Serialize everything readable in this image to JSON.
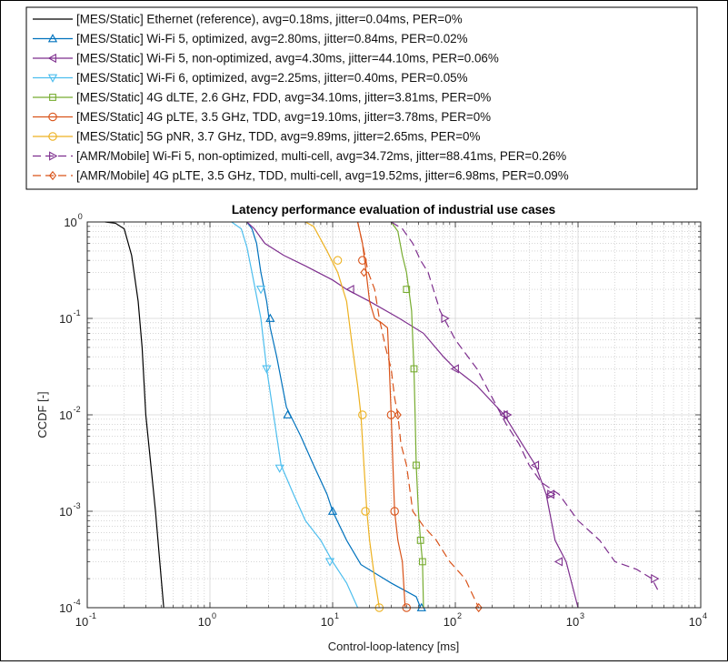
{
  "chart_data": {
    "type": "line",
    "title": "Latency performance evaluation of industrial use cases",
    "xlabel": "Control-loop-latency [ms]",
    "ylabel": "CCDF [-]",
    "xscale": "log",
    "yscale": "log",
    "xlim": [
      0.1,
      10000
    ],
    "ylim": [
      0.0001,
      1
    ],
    "grid": true,
    "legend_position": "above plot",
    "x_ticks": [
      {
        "base": "10",
        "exp": "-1",
        "value": 0.1
      },
      {
        "base": "10",
        "exp": "0",
        "value": 1
      },
      {
        "base": "10",
        "exp": "1",
        "value": 10
      },
      {
        "base": "10",
        "exp": "2",
        "value": 100
      },
      {
        "base": "10",
        "exp": "3",
        "value": 1000
      },
      {
        "base": "10",
        "exp": "4",
        "value": 10000
      }
    ],
    "y_ticks": [
      {
        "base": "10",
        "exp": "0",
        "value": 1
      },
      {
        "base": "10",
        "exp": "-1",
        "value": 0.1
      },
      {
        "base": "10",
        "exp": "-2",
        "value": 0.01
      },
      {
        "base": "10",
        "exp": "-3",
        "value": 0.001
      },
      {
        "base": "10",
        "exp": "-4",
        "value": 0.0001
      }
    ],
    "series": [
      {
        "name": "[MES/Static] Ethernet (reference), avg=0.18ms, jitter=0.04ms, PER=0%",
        "color": "#000000",
        "dash": "solid",
        "marker": "none",
        "points": [
          [
            0.14,
            1
          ],
          [
            0.17,
            0.97
          ],
          [
            0.2,
            0.85
          ],
          [
            0.23,
            0.45
          ],
          [
            0.26,
            0.15
          ],
          [
            0.28,
            0.05
          ],
          [
            0.3,
            0.01
          ],
          [
            0.33,
            0.003
          ],
          [
            0.36,
            0.001
          ],
          [
            0.39,
            0.0003
          ],
          [
            0.42,
            0.0001
          ]
        ],
        "markers": []
      },
      {
        "name": "[MES/Static] Wi-Fi 5, optimized, avg=2.80ms, jitter=0.84ms, PER=0.02%",
        "color": "#0072bd",
        "dash": "solid",
        "marker": "triangle-up",
        "points": [
          [
            2.0,
            1
          ],
          [
            2.2,
            0.85
          ],
          [
            2.4,
            0.6
          ],
          [
            2.6,
            0.3
          ],
          [
            2.9,
            0.15
          ],
          [
            3.1,
            0.08
          ],
          [
            3.5,
            0.04
          ],
          [
            4.2,
            0.012
          ],
          [
            5.5,
            0.006
          ],
          [
            7,
            0.003
          ],
          [
            9,
            0.0015
          ],
          [
            10,
            0.001
          ],
          [
            13,
            0.0005
          ],
          [
            17,
            0.00028
          ],
          [
            30,
            0.00018
          ],
          [
            48,
            0.00013
          ],
          [
            52,
            0.0001
          ]
        ],
        "markers": [
          [
            3.1,
            0.1
          ],
          [
            4.3,
            0.01
          ],
          [
            10,
            0.001
          ],
          [
            53,
            0.0001
          ]
        ]
      },
      {
        "name": "[MES/Static] Wi-Fi 5, non-optimized, avg=4.30ms, jitter=44.10ms, PER=0.06%",
        "color": "#7e2f8e",
        "dash": "solid",
        "marker": "triangle-left",
        "points": [
          [
            2.0,
            1
          ],
          [
            2.3,
            0.85
          ],
          [
            2.8,
            0.6
          ],
          [
            4,
            0.45
          ],
          [
            6,
            0.35
          ],
          [
            10,
            0.25
          ],
          [
            13,
            0.2
          ],
          [
            20,
            0.15
          ],
          [
            35,
            0.1
          ],
          [
            55,
            0.07
          ],
          [
            80,
            0.04
          ],
          [
            100,
            0.03
          ],
          [
            150,
            0.02
          ],
          [
            250,
            0.01
          ],
          [
            350,
            0.005
          ],
          [
            450,
            0.003
          ],
          [
            550,
            0.0015
          ],
          [
            650,
            0.0005
          ],
          [
            800,
            0.0003
          ],
          [
            1000,
            0.0001
          ]
        ],
        "markers": [
          [
            14,
            0.2
          ],
          [
            100,
            0.03
          ],
          [
            250,
            0.01
          ],
          [
            450,
            0.003
          ],
          [
            600,
            0.0015
          ],
          [
            700,
            0.0003
          ]
        ]
      },
      {
        "name": "[MES/Static] Wi-Fi 6, optimized, avg=2.25ms, jitter=0.40ms, PER=0.05%",
        "color": "#4dbeee",
        "dash": "solid",
        "marker": "triangle-down",
        "points": [
          [
            1.5,
            1
          ],
          [
            1.8,
            0.85
          ],
          [
            2.0,
            0.55
          ],
          [
            2.2,
            0.3
          ],
          [
            2.6,
            0.1
          ],
          [
            2.9,
            0.03
          ],
          [
            3.3,
            0.01
          ],
          [
            3.8,
            0.003
          ],
          [
            4.8,
            0.0015
          ],
          [
            6,
            0.0008
          ],
          [
            8,
            0.0005
          ],
          [
            10,
            0.0003
          ],
          [
            13,
            0.00018
          ],
          [
            16,
            0.0001
          ]
        ],
        "markers": [
          [
            2.6,
            0.2
          ],
          [
            2.9,
            0.03
          ],
          [
            3.7,
            0.0028
          ],
          [
            9.5,
            0.0003
          ]
        ]
      },
      {
        "name": "[MES/Static] 4G dLTE, 2.6 GHz, FDD, avg=34.10ms, jitter=3.81ms, PER=0%",
        "color": "#77ac30",
        "dash": "solid",
        "marker": "square",
        "points": [
          [
            30,
            1
          ],
          [
            34,
            0.8
          ],
          [
            37,
            0.45
          ],
          [
            40,
            0.3
          ],
          [
            44,
            0.12
          ],
          [
            46,
            0.03
          ],
          [
            47,
            0.01
          ],
          [
            48,
            0.003
          ],
          [
            50,
            0.001
          ],
          [
            52,
            0.0005
          ],
          [
            54,
            0.0003
          ],
          [
            55,
            0.0001
          ]
        ],
        "markers": [
          [
            40,
            0.2
          ],
          [
            46,
            0.03
          ],
          [
            48,
            0.003
          ],
          [
            52,
            0.0005
          ],
          [
            54,
            0.0003
          ]
        ]
      },
      {
        "name": "[MES/Static] 4G pLTE, 3.5 GHz, TDD, avg=19.10ms, jitter=3.78ms, PER=0%",
        "color": "#d95319",
        "dash": "solid",
        "marker": "circle",
        "points": [
          [
            16,
            1
          ],
          [
            17.5,
            0.6
          ],
          [
            18.5,
            0.35
          ],
          [
            20,
            0.15
          ],
          [
            22,
            0.1
          ],
          [
            25,
            0.09
          ],
          [
            28,
            0.08
          ],
          [
            29,
            0.03
          ],
          [
            30,
            0.01
          ],
          [
            31,
            0.003
          ],
          [
            32,
            0.001
          ],
          [
            34,
            0.0005
          ],
          [
            37,
            0.0003
          ],
          [
            39,
            0.0001
          ]
        ],
        "markers": [
          [
            17.5,
            0.4
          ],
          [
            30,
            0.01
          ],
          [
            32,
            0.001
          ],
          [
            40,
            0.0001
          ]
        ]
      },
      {
        "name": "[MES/Static] 5G pNR, 3.7 GHz, TDD, avg=9.89ms, jitter=2.65ms, PER=0%",
        "color": "#edb120",
        "dash": "solid",
        "marker": "circle",
        "points": [
          [
            6,
            1
          ],
          [
            7,
            0.9
          ],
          [
            9,
            0.5
          ],
          [
            11,
            0.3
          ],
          [
            13,
            0.15
          ],
          [
            14.5,
            0.05
          ],
          [
            16,
            0.02
          ],
          [
            17,
            0.01
          ],
          [
            18,
            0.003
          ],
          [
            19,
            0.001
          ],
          [
            20,
            0.0005
          ],
          [
            22,
            0.0002
          ],
          [
            24,
            0.0001
          ]
        ],
        "markers": [
          [
            11,
            0.4
          ],
          [
            17.5,
            0.01
          ],
          [
            18.5,
            0.001
          ],
          [
            24,
            0.0001
          ]
        ]
      },
      {
        "name": "[AMR/Mobile] Wi-Fi 5, non-optimized, multi-cell, avg=34.72ms, jitter=88.41ms, PER=0.26%",
        "color": "#7e2f8e",
        "dash": "dash",
        "marker": "triangle-right",
        "points": [
          [
            30,
            1
          ],
          [
            37,
            0.85
          ],
          [
            45,
            0.6
          ],
          [
            52,
            0.4
          ],
          [
            60,
            0.3
          ],
          [
            75,
            0.12
          ],
          [
            100,
            0.06
          ],
          [
            150,
            0.03
          ],
          [
            200,
            0.015
          ],
          [
            260,
            0.008
          ],
          [
            330,
            0.005
          ],
          [
            400,
            0.003
          ],
          [
            500,
            0.002
          ],
          [
            700,
            0.0015
          ],
          [
            1000,
            0.0008
          ],
          [
            1500,
            0.0005
          ],
          [
            2000,
            0.0003
          ],
          [
            3000,
            0.00025
          ],
          [
            4000,
            0.0002
          ],
          [
            4500,
            0.00015
          ]
        ],
        "markers": [
          [
            82,
            0.1
          ],
          [
            265,
            0.01
          ],
          [
            600,
            0.0015
          ],
          [
            4200,
            0.0002
          ]
        ]
      },
      {
        "name": "[AMR/Mobile] 4G pLTE, 3.5 GHz, TDD, multi-cell, avg=19.52ms, jitter=6.98ms, PER=0.09%",
        "color": "#d95319",
        "dash": "dash",
        "marker": "diamond",
        "points": [
          [
            16,
            1
          ],
          [
            17.5,
            0.6
          ],
          [
            19.5,
            0.3
          ],
          [
            22,
            0.2
          ],
          [
            24,
            0.1
          ],
          [
            27,
            0.05
          ],
          [
            30,
            0.03
          ],
          [
            32,
            0.015
          ],
          [
            34,
            0.01
          ],
          [
            36,
            0.005
          ],
          [
            40,
            0.003
          ],
          [
            45,
            0.001
          ],
          [
            55,
            0.0007
          ],
          [
            70,
            0.0005
          ],
          [
            90,
            0.0003
          ],
          [
            120,
            0.0002
          ],
          [
            155,
            0.0001
          ]
        ],
        "markers": [
          [
            18,
            0.3
          ],
          [
            34,
            0.01
          ],
          [
            155,
            0.0001
          ]
        ]
      }
    ]
  }
}
